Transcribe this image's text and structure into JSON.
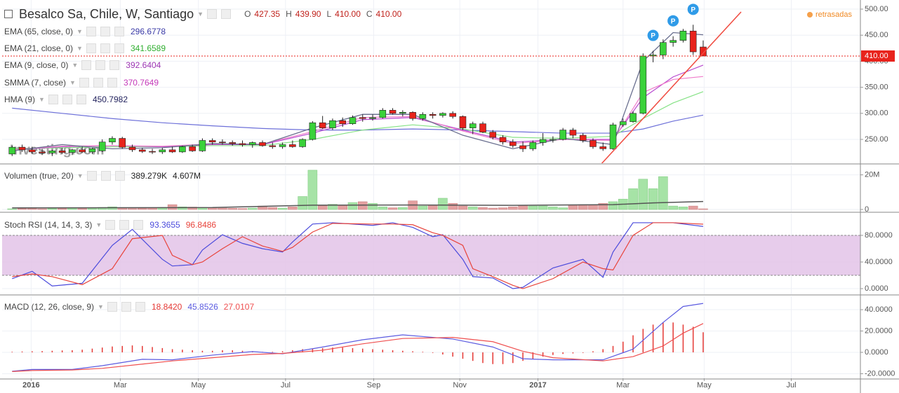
{
  "header": {
    "title": "Besalco Sa, Chile, W, Santiago",
    "ohlc": [
      {
        "key": "O",
        "label": "427.35"
      },
      {
        "key": "H",
        "label": "439.90"
      },
      {
        "key": "L",
        "label": "410.00"
      },
      {
        "key": "C",
        "label": "410.00"
      }
    ],
    "status": "retrasadas"
  },
  "chart_data": [
    {
      "type": "candlestick",
      "watermark": "Investing.com",
      "up_color": "#3ad23a",
      "down_color": "#e8231c",
      "candles": [
        [
          222,
          238,
          218,
          235
        ],
        [
          235,
          240,
          226,
          230
        ],
        [
          230,
          236,
          222,
          226
        ],
        [
          226,
          232,
          220,
          224
        ],
        [
          224,
          230,
          218,
          228
        ],
        [
          228,
          234,
          222,
          225
        ],
        [
          225,
          232,
          220,
          230
        ],
        [
          230,
          236,
          224,
          226
        ],
        [
          226,
          234,
          222,
          232
        ],
        [
          228,
          250,
          226,
          245
        ],
        [
          245,
          256,
          240,
          252
        ],
        [
          252,
          255,
          232,
          235
        ],
        [
          235,
          240,
          226,
          230
        ],
        [
          230,
          234,
          224,
          227
        ],
        [
          227,
          232,
          222,
          226
        ],
        [
          226,
          234,
          222,
          230
        ],
        [
          230,
          236,
          224,
          226
        ],
        [
          226,
          238,
          224,
          236
        ],
        [
          236,
          240,
          226,
          228
        ],
        [
          228,
          252,
          226,
          248
        ],
        [
          248,
          252,
          240,
          245
        ],
        [
          245,
          250,
          240,
          244
        ],
        [
          244,
          248,
          238,
          242
        ],
        [
          242,
          248,
          236,
          240
        ],
        [
          240,
          246,
          234,
          244
        ],
        [
          244,
          248,
          236,
          238
        ],
        [
          238,
          244,
          232,
          236
        ],
        [
          236,
          244,
          232,
          240
        ],
        [
          240,
          248,
          234,
          236
        ],
        [
          236,
          252,
          234,
          250
        ],
        [
          250,
          285,
          248,
          282
        ],
        [
          282,
          295,
          270,
          272
        ],
        [
          272,
          290,
          268,
          286
        ],
        [
          286,
          292,
          274,
          280
        ],
        [
          280,
          296,
          278,
          292
        ],
        [
          292,
          298,
          284,
          290
        ],
        [
          290,
          298,
          286,
          292
        ],
        [
          292,
          310,
          290,
          306
        ],
        [
          306,
          310,
          298,
          300
        ],
        [
          300,
          306,
          294,
          302
        ],
        [
          302,
          304,
          286,
          290
        ],
        [
          290,
          302,
          286,
          298
        ],
        [
          298,
          302,
          290,
          296
        ],
        [
          296,
          302,
          292,
          300
        ],
        [
          300,
          304,
          290,
          294
        ],
        [
          294,
          296,
          268,
          272
        ],
        [
          272,
          284,
          260,
          280
        ],
        [
          280,
          284,
          262,
          264
        ],
        [
          264,
          268,
          250,
          254
        ],
        [
          254,
          258,
          240,
          245
        ],
        [
          245,
          250,
          234,
          238
        ],
        [
          238,
          246,
          226,
          232
        ],
        [
          232,
          248,
          228,
          244
        ],
        [
          244,
          262,
          238,
          250
        ],
        [
          250,
          256,
          244,
          250
        ],
        [
          250,
          272,
          248,
          268
        ],
        [
          268,
          272,
          252,
          258
        ],
        [
          258,
          262,
          244,
          248
        ],
        [
          248,
          252,
          232,
          236
        ],
        [
          236,
          244,
          228,
          232
        ],
        [
          232,
          282,
          230,
          278
        ],
        [
          278,
          290,
          274,
          284
        ],
        [
          284,
          304,
          282,
          300
        ],
        [
          300,
          415,
          298,
          410
        ],
        [
          410,
          420,
          398,
          412
        ],
        [
          412,
          442,
          404,
          436
        ],
        [
          436,
          448,
          428,
          440
        ],
        [
          440,
          462,
          436,
          458
        ],
        [
          458,
          470,
          412,
          418
        ],
        [
          427.35,
          439.9,
          410,
          410
        ]
      ],
      "series": [
        {
          "name": "EMA (65, close, 0)",
          "color": "#6d70d9",
          "legend_value": "296.6778",
          "value_color": "#3a3aa6",
          "x": [
            0,
            5,
            10,
            15,
            20,
            25,
            30,
            35,
            40,
            45,
            50,
            55,
            60,
            63,
            66,
            69
          ],
          "values": [
            310,
            300,
            290,
            282,
            276,
            271,
            268,
            268,
            270,
            268,
            265,
            262,
            262,
            270,
            285,
            296.6778
          ]
        },
        {
          "name": "EMA (21, close, 0)",
          "color": "#86e286",
          "legend_value": "341.6589",
          "value_color": "#2fae2f",
          "x": [
            0,
            5,
            10,
            15,
            20,
            25,
            30,
            35,
            40,
            45,
            50,
            55,
            60,
            63,
            66,
            69
          ],
          "values": [
            232,
            234,
            236,
            236,
            238,
            238,
            250,
            268,
            278,
            270,
            254,
            252,
            256,
            290,
            320,
            341.6589
          ]
        },
        {
          "name": "EMA (9, close, 0)",
          "color": "#b84ad0",
          "legend_value": "392.6404",
          "value_color": "#9b34b3",
          "x": [
            0,
            5,
            10,
            15,
            20,
            25,
            30,
            35,
            40,
            45,
            50,
            55,
            60,
            63,
            66,
            69
          ],
          "values": [
            230,
            236,
            238,
            236,
            240,
            240,
            262,
            288,
            292,
            268,
            245,
            250,
            250,
            330,
            370,
            392.6404
          ]
        },
        {
          "name": "SMMA (7, close)",
          "color": "#f07ccb",
          "legend_value": "370.7649",
          "value_color": "#c43ab9",
          "x": [
            0,
            5,
            10,
            15,
            20,
            25,
            30,
            35,
            40,
            45,
            50,
            55,
            60,
            63,
            66,
            69
          ],
          "values": [
            230,
            237,
            238,
            237,
            241,
            241,
            265,
            292,
            294,
            266,
            242,
            250,
            248,
            340,
            365,
            370.7649
          ]
        },
        {
          "name": "HMA (9)",
          "color": "#6a6f8f",
          "legend_value": "450.7982",
          "value_color": "#23235e",
          "x": [
            0,
            5,
            10,
            15,
            20,
            25,
            30,
            35,
            40,
            45,
            50,
            55,
            60,
            63,
            66,
            69
          ],
          "values": [
            228,
            240,
            232,
            234,
            242,
            240,
            272,
            298,
            298,
            258,
            232,
            252,
            240,
            400,
            455,
            450.7982
          ]
        }
      ],
      "last_price": {
        "value": 410,
        "label": "410.00"
      },
      "last_color": "#e8231c",
      "markers": [
        "P",
        "P",
        "P"
      ],
      "marker_color": "#2f9be8",
      "xlim": [
        -1,
        84.7
      ],
      "xticks": [
        {
          "value": 1.9,
          "label": "2016"
        },
        {
          "value": 10.8,
          "label": "Mar"
        },
        {
          "value": 18.6,
          "label": "May"
        },
        {
          "value": 27.3,
          "label": "Jul"
        },
        {
          "value": 36.1,
          "label": "Sep"
        },
        {
          "value": 44.7,
          "label": "Nov"
        },
        {
          "value": 52.5,
          "label": "2017"
        },
        {
          "value": 61.0,
          "label": "Mar"
        },
        {
          "value": 69.1,
          "label": "May"
        },
        {
          "value": 77.8,
          "label": "Jul"
        }
      ],
      "ylim": [
        204.3,
        517.5
      ],
      "yticks": [
        {
          "value": 500,
          "label": "500.00"
        },
        {
          "value": 450,
          "label": "450.00"
        },
        {
          "value": 400,
          "label": "400.00"
        },
        {
          "value": 350,
          "label": "350.00"
        },
        {
          "value": 300,
          "label": "300.00"
        },
        {
          "value": 250,
          "label": "250.00"
        }
      ],
      "grid": true
    },
    {
      "type": "bar",
      "title": "Volumen (true, 20)",
      "legend_values": [
        "389.279K",
        "4.607M"
      ],
      "up_color": "#a6e3a6",
      "down_color": "#e3a0a0",
      "values": [
        0.4,
        0.5,
        0.6,
        0.4,
        0.5,
        0.6,
        0.7,
        0.5,
        0.8,
        1.2,
        1.5,
        1.0,
        0.6,
        0.7,
        0.9,
        1.2,
        2.8,
        1.5,
        1.4,
        1.2,
        1.0,
        0.8,
        0.7,
        0.6,
        0.8,
        2.0,
        1.2,
        0.8,
        1.5,
        7.5,
        22.7,
        2.2,
        3.0,
        2.5,
        4.0,
        4.5,
        3.5,
        1.5,
        1.0,
        1.2,
        5.0,
        2.0,
        2.5,
        6.5,
        3.5,
        2.0,
        1.5,
        1.2,
        0.8,
        1.0,
        1.5,
        2.5,
        2.0,
        2.0,
        1.5,
        1.0,
        2.5,
        2.8,
        2.5,
        3.5,
        4.5,
        6.0,
        12.0,
        17.5,
        12.0,
        19.0,
        2.0,
        1.5,
        2.0,
        0.39
      ],
      "ma": {
        "color": "#555555",
        "x": [
          0,
          10,
          20,
          30,
          40,
          50,
          60,
          64,
          69
        ],
        "values": [
          0.9,
          1.0,
          1.1,
          2.5,
          2.6,
          2.4,
          2.8,
          3.8,
          4.607
        ]
      },
      "ylim": [
        -1.2,
        25.5
      ],
      "yticks": [
        {
          "value": 20,
          "label": "20M"
        },
        0
      ]
    },
    {
      "type": "line",
      "title": "Stoch RSI (14, 14, 3, 3)",
      "bands": [
        20,
        80
      ],
      "band_color": "#e3c3e8",
      "x": [
        0,
        2,
        4,
        7,
        10,
        12,
        15,
        16,
        18,
        19,
        21,
        23,
        25,
        27,
        28,
        30,
        32,
        36,
        38,
        40,
        42,
        43,
        45,
        46,
        48,
        50,
        51,
        54,
        57,
        59,
        60,
        62,
        64,
        66,
        69
      ],
      "series": [
        {
          "color": "#4b4bdc",
          "legend_value": "93.3655",
          "values": [
            15,
            26,
            4,
            8,
            65,
            89,
            44,
            34,
            36,
            58,
            81,
            68,
            60,
            55,
            70,
            97,
            99,
            95,
            99,
            92,
            78,
            81,
            44,
            18,
            16,
            0,
            2,
            31,
            44,
            17,
            55,
            99,
            99,
            99,
            93.3655
          ]
        },
        {
          "color": "#e8443c",
          "legend_value": "96.8486",
          "values": [
            18,
            22,
            18,
            6,
            30,
            75,
            80,
            50,
            36,
            40,
            60,
            78,
            64,
            56,
            62,
            85,
            98,
            97,
            97,
            96,
            84,
            80,
            65,
            30,
            18,
            5,
            0,
            15,
            40,
            30,
            28,
            80,
            99,
            99,
            96.8486
          ]
        }
      ],
      "ylim": [
        -8.4,
        112.6
      ],
      "yticks": [
        {
          "value": 80,
          "label": "80.0000"
        },
        {
          "value": 40,
          "label": "40.0000"
        },
        {
          "value": 0,
          "label": "0.0000"
        }
      ]
    },
    {
      "type": "macd",
      "title": "MACD (12, 26, close, 9)",
      "histogram": {
        "color": "#e53935",
        "legend_value": "18.8420",
        "values": [
          0.5,
          0.8,
          1,
          1.2,
          1.5,
          1.8,
          2,
          2.5,
          3.5,
          4.5,
          5.5,
          6,
          6.5,
          6,
          5,
          4,
          3,
          2.5,
          2,
          1.5,
          1.5,
          2,
          2,
          1.5,
          1,
          0.5,
          0.5,
          1,
          2,
          3,
          3.5,
          4,
          4.5,
          4.5,
          4,
          3.5,
          3,
          2.5,
          2,
          1.5,
          1,
          0.5,
          -0.5,
          -2,
          -4,
          -6,
          -8,
          -10,
          -11,
          -11,
          -10,
          -8,
          -6,
          -4,
          -2.5,
          -1.5,
          -1,
          -0.5,
          1,
          3,
          6,
          10,
          16,
          22,
          26,
          28,
          28,
          26,
          24,
          18.842
        ]
      },
      "x": [
        0,
        2,
        6,
        9,
        13,
        16,
        20,
        24,
        27,
        31,
        35,
        39,
        44,
        48,
        51,
        54,
        59,
        62,
        65,
        67,
        69
      ],
      "series": [
        {
          "color": "#5b5be0",
          "legend_value": "45.8526",
          "values": [
            -17.7,
            -16,
            -16,
            -12.5,
            -6.5,
            -7,
            -2.6,
            0.7,
            -1.3,
            5,
            11.8,
            16.4,
            12.5,
            5,
            -6,
            -7,
            -7,
            3,
            28,
            43,
            45.8526
          ]
        },
        {
          "color": "#ef4f4f",
          "legend_value": "27.0107",
          "values": [
            -18,
            -17,
            -16.5,
            -15,
            -11,
            -8,
            -5,
            -2,
            -1,
            2,
            8,
            13,
            14,
            10,
            1,
            -5,
            -8,
            -4,
            6,
            18,
            27.0107
          ]
        }
      ],
      "ylim": [
        -24.3,
        52.5
      ],
      "yticks": [
        {
          "value": 40,
          "label": "40.0000"
        },
        {
          "value": 20,
          "label": "20.0000"
        },
        {
          "value": 0,
          "label": "0.0000"
        },
        {
          "value": -20,
          "label": "-20.0000"
        }
      ]
    }
  ]
}
